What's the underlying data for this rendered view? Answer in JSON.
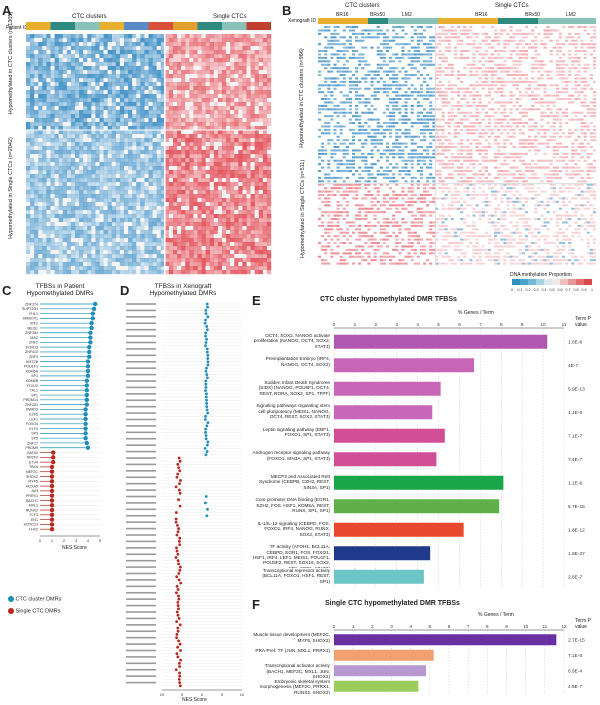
{
  "panels": {
    "A": {
      "letter": "A",
      "row_header": "Patient ID",
      "group_labels": [
        "CTC clusters",
        "Single CTCs"
      ],
      "row_labels": [
        "Hypomethylated in CTC clusters (n=1305)",
        "Hypomethylated in Single CTCs (n=2042)"
      ]
    },
    "B": {
      "letter": "B",
      "row_header": "Xenograft ID",
      "group_labels": [
        "CTC clusters",
        "Single CTCs"
      ],
      "xeno_ids": [
        "BR16",
        "BRx50",
        "LM2"
      ],
      "row_labels": [
        "Hypomethylated in CTC clusters (n=966)",
        "Hypomethylated in Single CTCs (n=511)"
      ],
      "legend_title": "DNA methylation Proportion",
      "legend_ticks": [
        "0",
        "0.1",
        "0.2",
        "0.3",
        "0.4",
        "0.5",
        "0.6",
        "0.7",
        "0.8",
        "0.9",
        "1"
      ]
    },
    "C": {
      "letter": "C",
      "title": "TFBSs in Patient Hypomethylated DMRs",
      "xlabel": "NES Score",
      "xticks": [
        "0",
        "1",
        "2",
        "3",
        "4",
        "5"
      ],
      "legend": [
        {
          "label": "CTC cluster DMRs",
          "color": "#1f8fb8"
        },
        {
          "label": "Single CTC DMRs",
          "color": "#b8281e"
        }
      ]
    },
    "D": {
      "letter": "D",
      "title": "TFBSs in Xenograft Hypomethylated DMRs",
      "xlabel": "NES Score",
      "xticks": [
        "10",
        "5",
        "0",
        "5",
        "10"
      ]
    },
    "E": {
      "letter": "E",
      "title": "CTC cluster hypomethylated DMR TFBSs",
      "axis_title": "% Genes / Term",
      "term_header": "Term P value",
      "xticks": [
        "0",
        "1",
        "2",
        "3",
        "4",
        "5",
        "6",
        "7",
        "8",
        "9",
        "10",
        "11"
      ]
    },
    "F": {
      "letter": "F",
      "title": "Single CTC hypomethylated DMR TFBSs",
      "axis_title": "% Genes / Term",
      "term_header": "Term P value",
      "xticks": [
        "0",
        "1",
        "2",
        "3",
        "4",
        "5",
        "6",
        "7",
        "8",
        "9",
        "10",
        "11",
        "12"
      ]
    }
  },
  "chart_data": [
    {
      "type": "bar",
      "panel": "E",
      "title": "CTC cluster hypomethylated DMR TFBSs",
      "xlabel": "% Genes / Term",
      "xlim": [
        0,
        11
      ],
      "categories": [
        "OCT4, SOX2, NANOG activate proliferation (NANOG, OCT4, SOX2, STAT3)",
        "Preimplantation Embryo (IRF4, NANOG, OCT4, SOX2)",
        "Sudden Infant Death Syndrome (SIDS) (NANOG, POU5F1, OCT4, REST, RORA, SOX2, SP1, TFPF)",
        "Signaling pathways regulating stem cell pluripotency (MEIS1, NANOG, OCT4, REST, SOX2, STAT3)",
        "Leptin signaling pathway (EBF1, FOXO1, SP1, STAT3)",
        "Androgen receptor signaling pathway (FOXO1, SIN3A, SP1, STAT3)",
        "MECP2 and Associated Rett Syndrome (CEBPB, CZH2, REST, SIN3A, SP1)",
        "Core promoter DNA binding (EGR1, EZH2, FOS, HSF1, KDM5A, REST, RUNX, SP1, SP1)",
        "IL-1/IL-12 signaling (CEBPD, FOS, FOXO1, IRF4, NANOG, RUNX, SOX2, STAT3)",
        "TF activity (ATOH1, BCL11A, CEBPD, EGR1, FOS, FOXO1, HSF1, IRF4, LEF1, MEIS1, POU1F1, POU5F2, REST, SOX18, SOX2, SP1, SRF1, STAT3)",
        "Transcriptional repressor activity (BCL11A, FOXO1, HSF1, REST, SP1)"
      ],
      "values": [
        10.2,
        6.7,
        5.1,
        4.7,
        5.3,
        4.9,
        8.1,
        7.9,
        6.2,
        4.6,
        4.3
      ],
      "colors": [
        "#b058b0",
        "#c866b8",
        "#c866b8",
        "#c866b8",
        "#d24e96",
        "#d24e96",
        "#1aa64a",
        "#5fb048",
        "#e8482c",
        "#1f3a8a",
        "#6cc6c8"
      ],
      "pvalues": [
        "1.5E-6",
        "4E-7",
        "5.9E-13",
        "1.1E-6",
        "7.1E-7",
        "7.4E-7",
        "1.1E-6",
        "5.7E-15",
        "1.8E-12",
        "1.6E-27",
        "2.6E-7"
      ]
    },
    {
      "type": "bar",
      "panel": "F",
      "title": "Single CTC hypomethylated DMR TFBSs",
      "xlabel": "% Genes / Term",
      "xlim": [
        0,
        12
      ],
      "categories": [
        "Muscle tissue development (MEF2C, MYF5, SHOX2)",
        "PRA-Pref. TF (JUN, MXL1, PRRX1)",
        "Transcriptional activator activity (BACH1, MEF2C, MXL1, JUN, SHOX2)",
        "Embryonic skeletal system morphogenesis (MEF2C, PRRX1, RUNX2, SHOX2)"
      ],
      "values": [
        11.6,
        5.2,
        4.8,
        4.4
      ],
      "colors": [
        "#6a2fa0",
        "#f2a070",
        "#b898d0",
        "#9ccc5a"
      ],
      "pvalues": [
        "2.7E-15",
        "7.1E-5",
        "6.9E-4",
        "4.6E-7"
      ]
    },
    {
      "type": "scatter",
      "panel": "C",
      "title": "TFBSs in Patient Hypomethylated DMRs",
      "xlabel": "NES Score",
      "xlim": [
        0,
        5
      ],
      "series": [
        {
          "name": "CTC cluster DMRs",
          "color": "#1f8fb8",
          "categories": [
            "ZNF374",
            "SUPT20H",
            "FHL1",
            "HMBOX1",
            "IRF2",
            "MEIS1",
            "ZNF384",
            "MAZ",
            "ZNF2",
            "FOXD3",
            "ZNF410",
            "ZNF3",
            "KMT2B",
            "POU1F1",
            "KDM5A",
            "SP1",
            "KDM5B",
            "FOXJ2",
            "TAL1",
            "SP1",
            "PRDM14",
            "ZNF281",
            "SMAD3",
            "E2F6",
            "LEF1",
            "FOXO4",
            "KLF4",
            "SP3",
            "SP5",
            "ZNF17",
            "PRDM9"
          ],
          "values": [
            4.6,
            4.5,
            4.4,
            4.4,
            4.3,
            4.3,
            4.2,
            4.2,
            4.2,
            4.1,
            4.1,
            4.1,
            4.0,
            4.0,
            4.0,
            4.0,
            3.9,
            3.9,
            3.9,
            3.9,
            3.9,
            3.9,
            3.8,
            3.8,
            3.8,
            3.8,
            3.8,
            3.8,
            3.8,
            3.9,
            4.0
          ]
        },
        {
          "name": "Single CTC DMRs",
          "color": "#b8281e",
          "categories": [
            "GATA2",
            "NR2F2",
            "ETV4",
            "TBX5",
            "MEF2C",
            "SHOX2",
            "MYF5",
            "HOXA5",
            "JUN",
            "PRRX1",
            "BACH1",
            "MXL1",
            "RUNX2",
            "TCF3",
            "EN1",
            "HOXD13",
            "LHX2"
          ],
          "values": [
            1.1,
            1.1,
            1.1,
            1.0,
            1.0,
            1.0,
            1.0,
            1.0,
            1.0,
            1.0,
            1.0,
            1.0,
            1.0,
            1.0,
            1.0,
            1.0,
            1.0
          ]
        }
      ]
    }
  ]
}
